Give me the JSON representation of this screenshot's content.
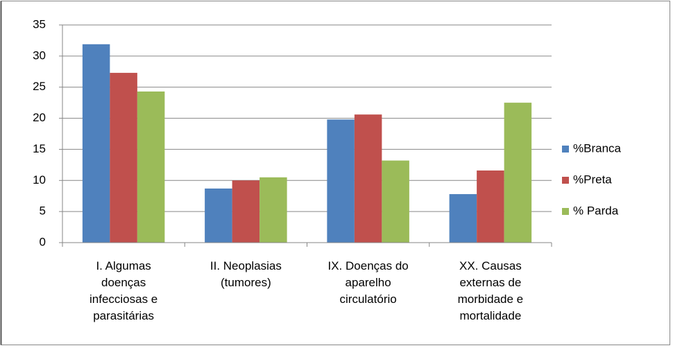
{
  "chart_data": {
    "type": "bar",
    "categories": [
      "I.  Algumas doenças infecciosas e parasitárias",
      "II.  Neoplasias (tumores)",
      "IX.  Doenças do aparelho circulatório",
      "XX.  Causas externas de morbidade e mortalidade"
    ],
    "series": [
      {
        "name": "%Branca",
        "color": "#4f81bd",
        "values": [
          31.9,
          8.7,
          19.8,
          7.8
        ]
      },
      {
        "name": "%Preta",
        "color": "#c0504d",
        "values": [
          27.3,
          10.0,
          20.6,
          11.6
        ]
      },
      {
        "name": "% Parda",
        "color": "#9bbb59",
        "values": [
          24.3,
          10.5,
          13.2,
          22.5
        ]
      }
    ],
    "ylim": [
      0,
      35
    ],
    "yticks": [
      0,
      5,
      10,
      15,
      20,
      25,
      30,
      35
    ],
    "grid": true,
    "legend": "right"
  }
}
